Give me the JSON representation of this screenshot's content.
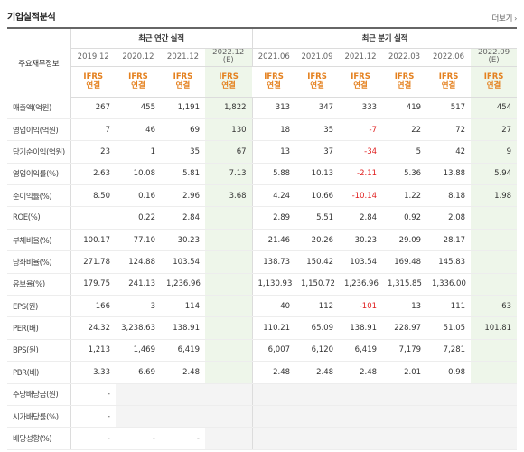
{
  "header": {
    "title": "기업실적분석",
    "more_label": "더보기"
  },
  "table": {
    "row_header": "주요재무정보",
    "groups": {
      "annual": "최근 연간 실적",
      "quarter": "최근 분기 실적"
    },
    "periods": [
      "2019.12",
      "2020.12",
      "2021.12",
      "2022.12\n(E)",
      "2021.06",
      "2021.09",
      "2021.12",
      "2022.03",
      "2022.06",
      "2022.09\n(E)"
    ],
    "accounting": [
      "IFRS\n연결",
      "IFRS\n연결",
      "IFRS\n연결",
      "IFRS\n연결",
      "IFRS\n연결",
      "IFRS\n연결",
      "IFRS\n연결",
      "IFRS\n연결",
      "IFRS\n연결",
      "IFRS\n연결"
    ],
    "rows": [
      {
        "label": "매출액(억원)",
        "values": [
          "267",
          "455",
          "1,191",
          "1,822",
          "313",
          "347",
          "333",
          "419",
          "517",
          "454"
        ]
      },
      {
        "label": "영업이익(억원)",
        "values": [
          "7",
          "46",
          "69",
          "130",
          "18",
          "35",
          "-7",
          "22",
          "72",
          "27"
        ]
      },
      {
        "label": "당기순이익(억원)",
        "values": [
          "23",
          "1",
          "35",
          "67",
          "13",
          "37",
          "-34",
          "5",
          "42",
          "9"
        ]
      },
      {
        "label": "영업이익률(%)",
        "values": [
          "2.63",
          "10.08",
          "5.81",
          "7.13",
          "5.88",
          "10.13",
          "-2.11",
          "5.36",
          "13.88",
          "5.94"
        ]
      },
      {
        "label": "순이익률(%)",
        "values": [
          "8.50",
          "0.16",
          "2.96",
          "3.68",
          "4.24",
          "10.66",
          "-10.14",
          "1.22",
          "8.18",
          "1.98"
        ]
      },
      {
        "label": "ROE(%)",
        "values": [
          "",
          "0.22",
          "2.84",
          "",
          "2.89",
          "5.51",
          "2.84",
          "0.92",
          "2.08",
          ""
        ]
      },
      {
        "label": "부채비율(%)",
        "values": [
          "100.17",
          "77.10",
          "30.23",
          "",
          "21.46",
          "20.26",
          "30.23",
          "29.09",
          "28.17",
          ""
        ]
      },
      {
        "label": "당좌비율(%)",
        "values": [
          "271.78",
          "124.88",
          "103.54",
          "",
          "138.73",
          "150.42",
          "103.54",
          "169.48",
          "145.83",
          ""
        ]
      },
      {
        "label": "유보율(%)",
        "values": [
          "179.75",
          "241.13",
          "1,236.96",
          "",
          "1,130.93",
          "1,150.72",
          "1,236.96",
          "1,315.85",
          "1,336.00",
          ""
        ]
      },
      {
        "label": "EPS(원)",
        "values": [
          "166",
          "3",
          "114",
          "",
          "40",
          "112",
          "-101",
          "13",
          "111",
          "63"
        ]
      },
      {
        "label": "PER(배)",
        "values": [
          "24.32",
          "3,238.63",
          "138.91",
          "",
          "110.21",
          "65.09",
          "138.91",
          "228.97",
          "51.05",
          "101.81"
        ]
      },
      {
        "label": "BPS(원)",
        "values": [
          "1,213",
          "1,469",
          "6,419",
          "",
          "6,007",
          "6,120",
          "6,419",
          "7,179",
          "7,281",
          ""
        ]
      },
      {
        "label": "PBR(배)",
        "values": [
          "3.33",
          "6.69",
          "2.48",
          "",
          "2.48",
          "2.48",
          "2.48",
          "2.01",
          "0.98",
          ""
        ]
      },
      {
        "label": "주당배당금(원)",
        "values": [
          "-",
          "",
          "",
          "",
          "",
          "",
          "",
          "",
          "",
          ""
        ],
        "na_from": 1
      },
      {
        "label": "시가배당률(%)",
        "values": [
          "-",
          "",
          "",
          "",
          "",
          "",
          "",
          "",
          "",
          ""
        ],
        "na_from": 1
      },
      {
        "label": "배당성향(%)",
        "values": [
          "-",
          "-",
          "-",
          "",
          "",
          "",
          "",
          "",
          "",
          ""
        ],
        "na_from": 3
      }
    ]
  },
  "colors": {
    "accounting_text": "#e4801e",
    "negative_text": "#e02020",
    "estimate_bg": "#eef6ea"
  }
}
